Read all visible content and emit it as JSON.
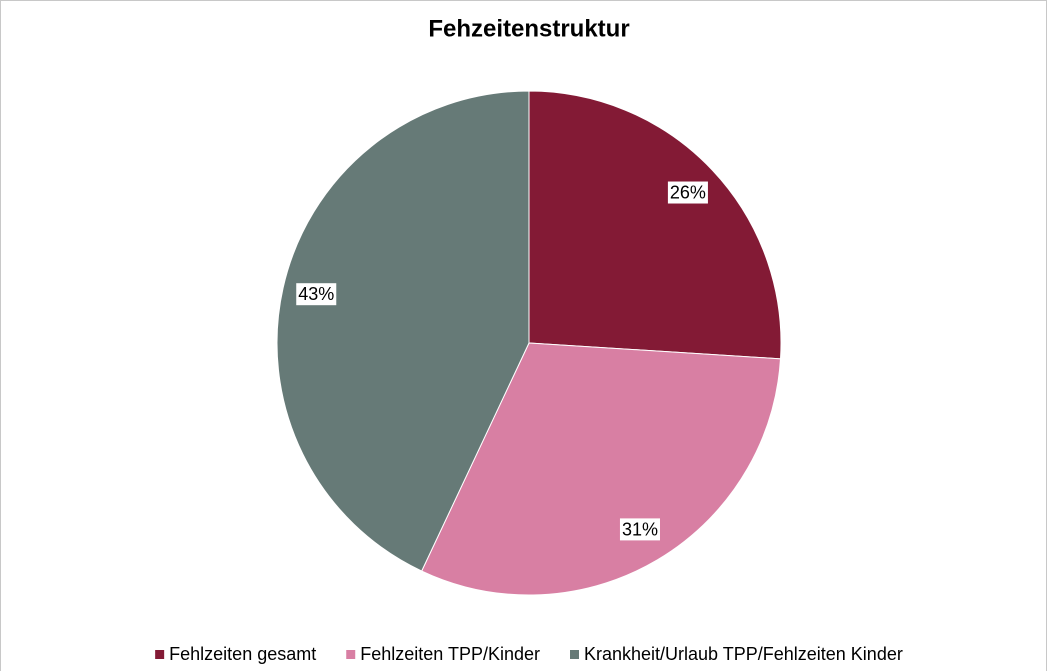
{
  "chart_data": {
    "type": "pie",
    "title": "Fehzeitenstruktur",
    "categories": [
      "Fehlzeiten gesamt",
      "Fehlzeiten TPP/Kinder",
      "Krankheit/Urlaub TPP/Fehlzeiten Kinder"
    ],
    "values": [
      26,
      31,
      43
    ],
    "value_labels": [
      "26%",
      "31%",
      "43%"
    ],
    "colors": [
      "#831a35",
      "#d87fa3",
      "#667a77"
    ],
    "legend": "bottom"
  }
}
